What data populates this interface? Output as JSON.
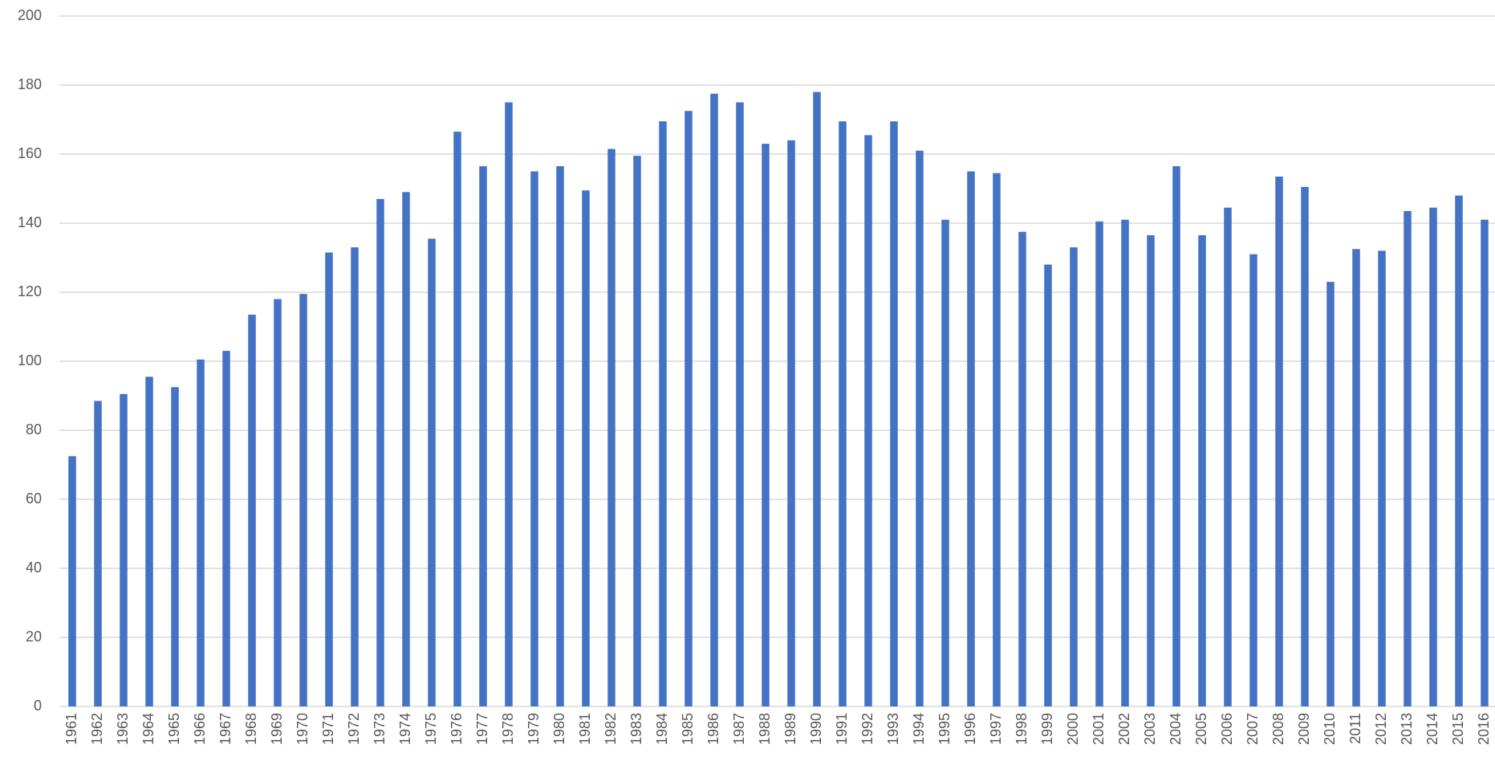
{
  "chart_data": {
    "type": "bar",
    "categories": [
      "1961",
      "1962",
      "1963",
      "1964",
      "1965",
      "1966",
      "1967",
      "1968",
      "1969",
      "1970",
      "1971",
      "1972",
      "1973",
      "1974",
      "1975",
      "1976",
      "1977",
      "1978",
      "1979",
      "1980",
      "1981",
      "1982",
      "1983",
      "1984",
      "1985",
      "1986",
      "1987",
      "1988",
      "1989",
      "1990",
      "1991",
      "1992",
      "1993",
      "1994",
      "1995",
      "1996",
      "1997",
      "1998",
      "1999",
      "2000",
      "2001",
      "2002",
      "2003",
      "2004",
      "2005",
      "2006",
      "2007",
      "2008",
      "2009",
      "2010",
      "2011",
      "2012",
      "2013",
      "2014",
      "2015",
      "2016"
    ],
    "values": [
      72.5,
      88.5,
      90.5,
      95.5,
      92.5,
      100.5,
      103,
      113.5,
      118,
      119.5,
      131.5,
      133,
      147,
      149,
      135.5,
      166.5,
      156.5,
      175,
      155,
      156.5,
      149.5,
      161.5,
      159.5,
      169.5,
      172.5,
      177.5,
      175,
      163,
      164,
      178,
      169.5,
      165.5,
      169.5,
      161,
      141,
      155,
      154.5,
      137.5,
      128,
      133,
      140.5,
      141,
      136.5,
      156.5,
      136.5,
      144.5,
      131,
      153.5,
      150.5,
      123,
      132.5,
      132,
      143.5,
      144.5,
      148,
      141
    ],
    "color": "#4472c4",
    "ylim": [
      0,
      200
    ],
    "yticks": [
      0,
      20,
      40,
      60,
      80,
      100,
      120,
      140,
      160,
      180,
      200
    ],
    "grid": true
  }
}
